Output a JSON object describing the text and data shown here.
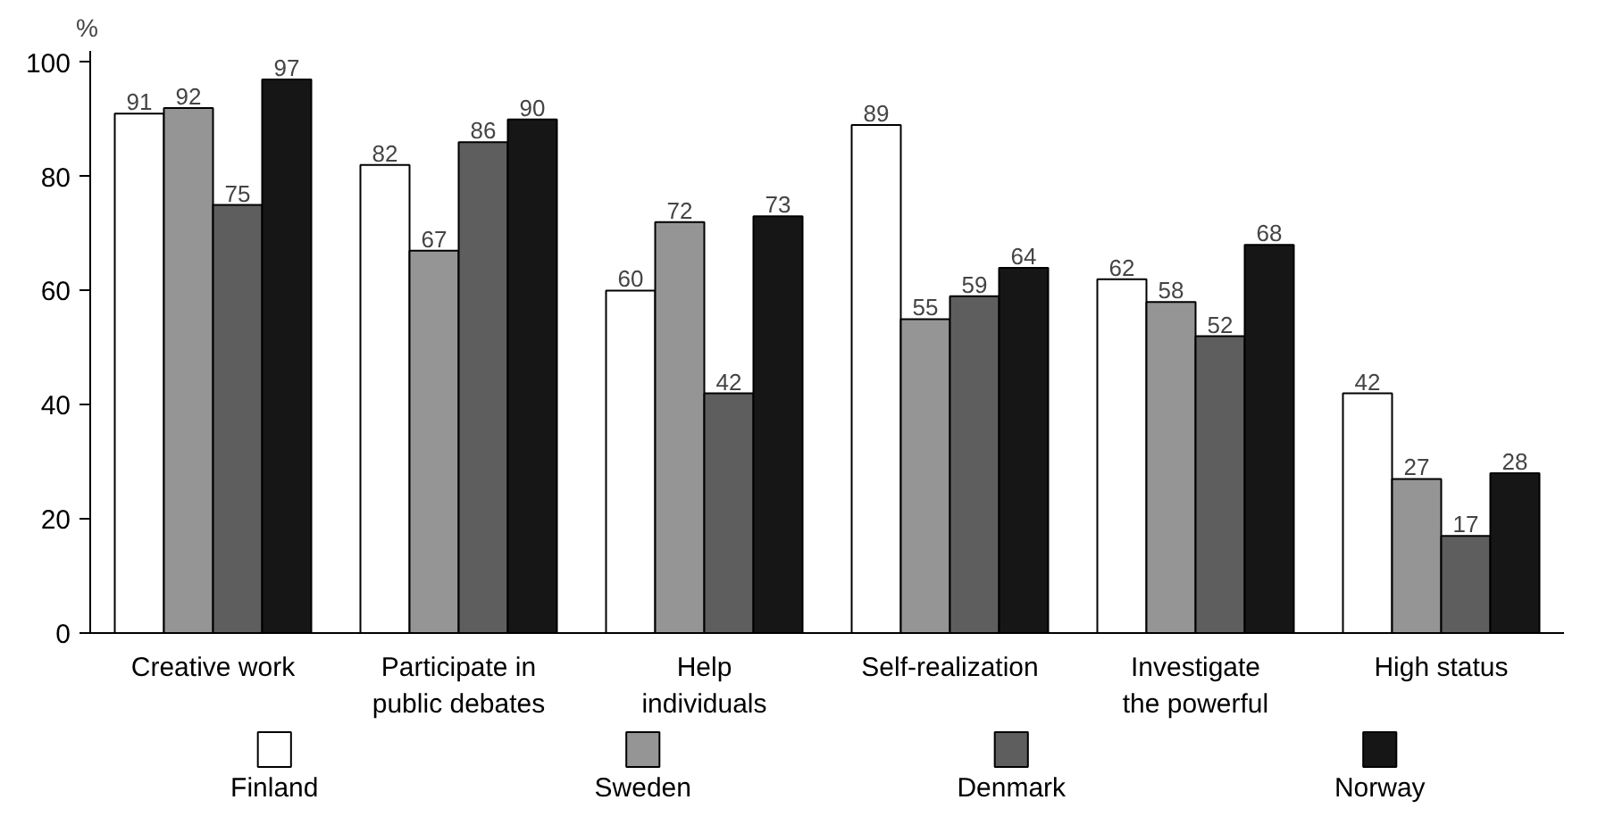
{
  "chart_data": {
    "type": "bar",
    "ylabel": "%",
    "categories": [
      "Creative work",
      "Participate in\npublic debates",
      "Help\nindividuals",
      "Self-realization",
      "Investigate\nthe powerful",
      "High status"
    ],
    "series": [
      {
        "name": "Finland",
        "color": "#ffffff",
        "values": [
          91,
          82,
          60,
          89,
          62,
          42
        ]
      },
      {
        "name": "Sweden",
        "color": "#959595",
        "values": [
          92,
          67,
          72,
          55,
          58,
          27
        ]
      },
      {
        "name": "Denmark",
        "color": "#5e5e5e",
        "values": [
          75,
          86,
          42,
          59,
          52,
          17
        ]
      },
      {
        "name": "Norway",
        "color": "#161616",
        "values": [
          97,
          90,
          73,
          64,
          68,
          28
        ]
      }
    ],
    "ylim": [
      0,
      102
    ],
    "yticks": [
      0,
      20,
      40,
      60,
      80,
      100
    ],
    "grid": false,
    "legend": "bottom",
    "data_labels": true
  }
}
